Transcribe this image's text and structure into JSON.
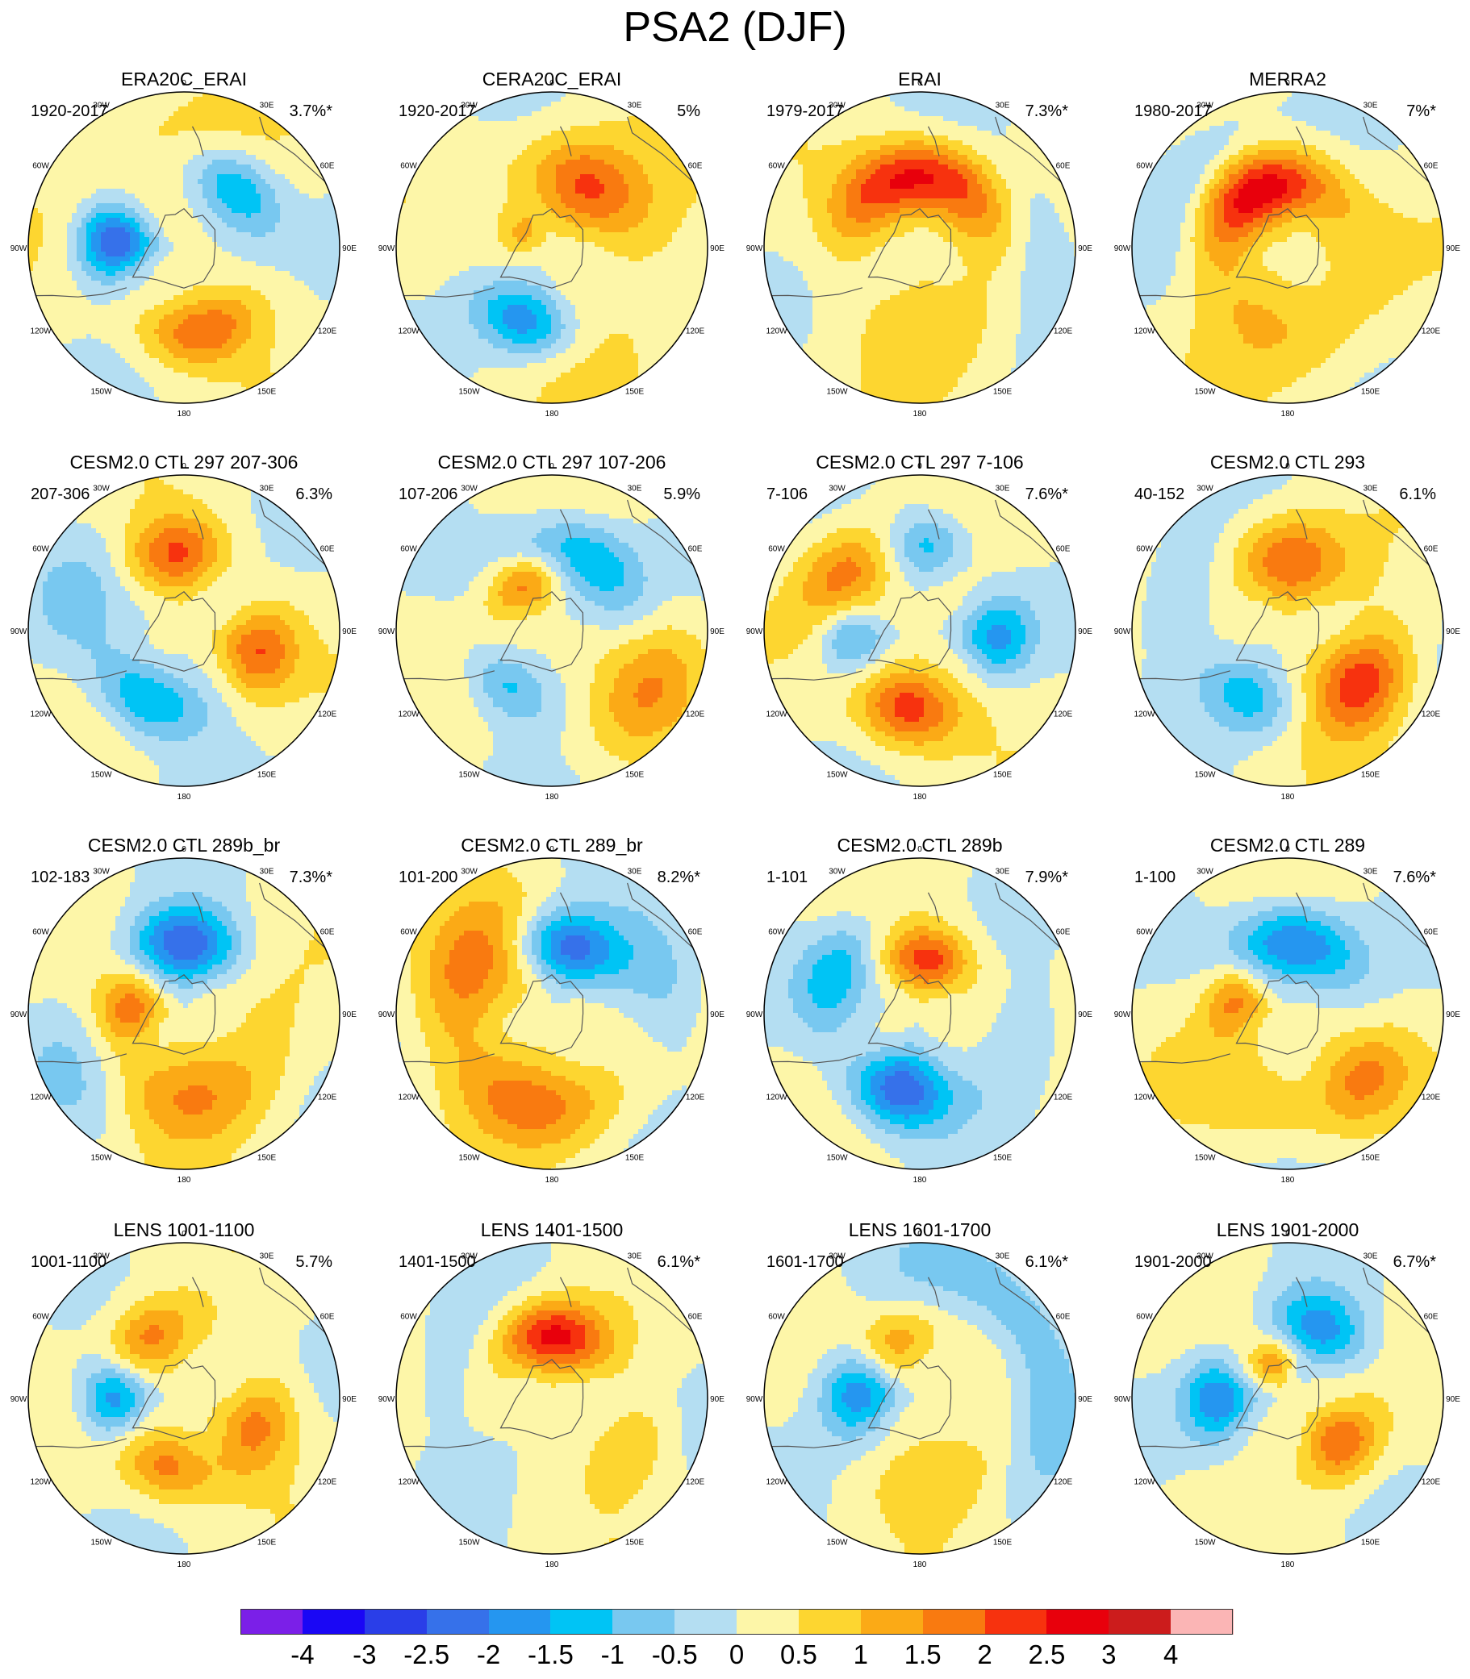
{
  "title": "PSA2 (DJF)",
  "colors": {
    "level_colors": [
      "#7b1fe8",
      "#1a07f5",
      "#2a3ee8",
      "#3671ea",
      "#2596f0",
      "#00c4f5",
      "#78c8f0",
      "#b4def2",
      "#fdf6a8",
      "#fdd630",
      "#fbaa16",
      "#f97a10",
      "#f7320e",
      "#e8000c",
      "#cc1c1c",
      "#fbb5b5"
    ],
    "coast": "#555555"
  },
  "colorbar": {
    "labels": [
      "-4",
      "-3",
      "-2.5",
      "-2",
      "-1.5",
      "-1",
      "-0.5",
      "0",
      "0.5",
      "1",
      "1.5",
      "2",
      "2.5",
      "3",
      "4"
    ]
  },
  "lon_labels": [
    "0",
    "30E",
    "60E",
    "90E",
    "120E",
    "150E",
    "180",
    "150W",
    "120W",
    "90W",
    "60W",
    "30W"
  ],
  "panels": [
    {
      "title": "ERA20C_ERAI",
      "period": "1920-2017",
      "variance": "3.7%*",
      "anomalies": [
        {
          "lon": 10,
          "r": 0.55,
          "amp": 1.7,
          "sa": 28,
          "sr": 0.15
        },
        {
          "lon": 265,
          "r": 0.45,
          "amp": -2.9,
          "sa": 20,
          "sr": 0.17
        },
        {
          "lon": 140,
          "r": 0.5,
          "amp": -1.8,
          "sa": 26,
          "sr": 0.16
        },
        {
          "lon": 200,
          "r": 0.7,
          "amp": 0.6,
          "sa": 40,
          "sr": 0.25
        }
      ]
    },
    {
      "title": "CERA20C_ERAI",
      "period": "1920-2017",
      "variance": "5%",
      "anomalies": [
        {
          "lon": 340,
          "r": 0.5,
          "amp": -2.0,
          "sa": 25,
          "sr": 0.16
        },
        {
          "lon": 155,
          "r": 0.45,
          "amp": 1.8,
          "sa": 35,
          "sr": 0.2
        },
        {
          "lon": 240,
          "r": 0.2,
          "amp": 0.9,
          "sa": 30,
          "sr": 0.1
        },
        {
          "lon": 60,
          "r": 0.7,
          "amp": 0.4,
          "sa": 60,
          "sr": 0.3
        }
      ]
    },
    {
      "title": "ERAI",
      "period": "1979-2017",
      "variance": "7.3%*",
      "anomalies": [
        {
          "lon": 180,
          "r": 0.45,
          "amp": 2.6,
          "sa": 55,
          "sr": 0.17
        },
        {
          "lon": 20,
          "r": 0.55,
          "amp": 0.7,
          "sa": 40,
          "sr": 0.25
        },
        {
          "lon": 100,
          "r": 0.75,
          "amp": -0.7,
          "sa": 30,
          "sr": 0.2
        }
      ]
    },
    {
      "title": "MERRA2",
      "period": "1980-2017",
      "variance": "7%*",
      "anomalies": [
        {
          "lon": 205,
          "r": 0.4,
          "amp": 2.6,
          "sa": 55,
          "sr": 0.17
        },
        {
          "lon": 10,
          "r": 0.55,
          "amp": 0.8,
          "sa": 50,
          "sr": 0.25
        },
        {
          "lon": 230,
          "r": 0.8,
          "amp": -0.8,
          "sa": 30,
          "sr": 0.15
        }
      ]
    },
    {
      "title": "CESM2.0 CTL 297 207-306",
      "period": "207-306",
      "variance": "6.3%",
      "anomalies": [
        {
          "lon": 330,
          "r": 0.5,
          "amp": -1.7,
          "sa": 30,
          "sr": 0.16
        },
        {
          "lon": 75,
          "r": 0.5,
          "amp": 1.7,
          "sa": 22,
          "sr": 0.17
        },
        {
          "lon": 185,
          "r": 0.5,
          "amp": 1.8,
          "sa": 25,
          "sr": 0.17
        },
        {
          "lon": 250,
          "r": 0.7,
          "amp": -0.7,
          "sa": 25,
          "sr": 0.2
        }
      ]
    },
    {
      "title": "CESM2.0 CTL 297 107-206",
      "period": "107-206",
      "variance": "5.9%",
      "anomalies": [
        {
          "lon": 210,
          "r": 0.35,
          "amp": 1.8,
          "sa": 30,
          "sr": 0.13
        },
        {
          "lon": 160,
          "r": 0.5,
          "amp": -1.8,
          "sa": 35,
          "sr": 0.17
        },
        {
          "lon": 60,
          "r": 0.72,
          "amp": 1.2,
          "sa": 25,
          "sr": 0.2
        },
        {
          "lon": 320,
          "r": 0.45,
          "amp": -1.2,
          "sa": 25,
          "sr": 0.14
        }
      ]
    },
    {
      "title": "CESM2.0 CTL 297 7-106",
      "period": "7-106",
      "variance": "7.6%*",
      "anomalies": [
        {
          "lon": 350,
          "r": 0.5,
          "amp": 2.2,
          "sa": 25,
          "sr": 0.18
        },
        {
          "lon": 275,
          "r": 0.45,
          "amp": -1.6,
          "sa": 20,
          "sr": 0.16
        },
        {
          "lon": 235,
          "r": 0.6,
          "amp": 1.8,
          "sa": 25,
          "sr": 0.18
        },
        {
          "lon": 175,
          "r": 0.55,
          "amp": -1.4,
          "sa": 18,
          "sr": 0.15
        },
        {
          "lon": 85,
          "r": 0.5,
          "amp": -1.7,
          "sa": 20,
          "sr": 0.16
        }
      ]
    },
    {
      "title": "CESM2.0 CTL 293",
      "period": "40-152",
      "variance": "6.1%",
      "anomalies": [
        {
          "lon": 55,
          "r": 0.58,
          "amp": 2.3,
          "sa": 25,
          "sr": 0.2
        },
        {
          "lon": 180,
          "r": 0.45,
          "amp": 1.9,
          "sa": 30,
          "sr": 0.2
        },
        {
          "lon": 330,
          "r": 0.5,
          "amp": -1.3,
          "sa": 25,
          "sr": 0.16
        },
        {
          "lon": 250,
          "r": 0.75,
          "amp": -0.8,
          "sa": 25,
          "sr": 0.2
        }
      ]
    },
    {
      "title": "CESM2.0 CTL 289b_br",
      "period": "102-183",
      "variance": "7.3%*",
      "anomalies": [
        {
          "lon": 180,
          "r": 0.45,
          "amp": -2.5,
          "sa": 30,
          "sr": 0.17
        },
        {
          "lon": 15,
          "r": 0.55,
          "amp": 1.3,
          "sa": 50,
          "sr": 0.22
        },
        {
          "lon": 265,
          "r": 0.35,
          "amp": 1.6,
          "sa": 25,
          "sr": 0.14
        },
        {
          "lon": 300,
          "r": 0.8,
          "amp": -0.7,
          "sa": 25,
          "sr": 0.18
        }
      ]
    },
    {
      "title": "CESM2.0 CTL 289_br",
      "period": "101-200",
      "variance": "8.2%*",
      "anomalies": [
        {
          "lon": 165,
          "r": 0.45,
          "amp": -2.3,
          "sa": 30,
          "sr": 0.16
        },
        {
          "lon": 350,
          "r": 0.6,
          "amp": 1.5,
          "sa": 40,
          "sr": 0.2
        },
        {
          "lon": 240,
          "r": 0.6,
          "amp": 1.6,
          "sa": 35,
          "sr": 0.22
        },
        {
          "lon": 110,
          "r": 0.75,
          "amp": -1.0,
          "sa": 25,
          "sr": 0.2
        }
      ]
    },
    {
      "title": "CESM2.0 CTL 289b",
      "period": "1-101",
      "variance": "7.9%*",
      "anomalies": [
        {
          "lon": 345,
          "r": 0.5,
          "amp": -2.6,
          "sa": 25,
          "sr": 0.18
        },
        {
          "lon": 170,
          "r": 0.35,
          "amp": 2.1,
          "sa": 30,
          "sr": 0.15
        },
        {
          "lon": 245,
          "r": 0.6,
          "amp": -1.4,
          "sa": 25,
          "sr": 0.16
        },
        {
          "lon": 70,
          "r": 0.7,
          "amp": -0.8,
          "sa": 25,
          "sr": 0.18
        }
      ]
    },
    {
      "title": "CESM2.0 CTL 289",
      "period": "1-100",
      "variance": "7.6%*",
      "anomalies": [
        {
          "lon": 175,
          "r": 0.45,
          "amp": -2.3,
          "sa": 35,
          "sr": 0.17
        },
        {
          "lon": 50,
          "r": 0.65,
          "amp": 1.2,
          "sa": 20,
          "sr": 0.18
        },
        {
          "lon": 255,
          "r": 0.35,
          "amp": 1.6,
          "sa": 25,
          "sr": 0.14
        },
        {
          "lon": 340,
          "r": 0.6,
          "amp": 0.8,
          "sa": 40,
          "sr": 0.2
        }
      ]
    },
    {
      "title": "LENS 1001-1100",
      "period": "1001-1100",
      "variance": "5.7%",
      "anomalies": [
        {
          "lon": 345,
          "r": 0.45,
          "amp": 1.6,
          "sa": 25,
          "sr": 0.16
        },
        {
          "lon": 270,
          "r": 0.45,
          "amp": -2.0,
          "sa": 20,
          "sr": 0.15
        },
        {
          "lon": 70,
          "r": 0.5,
          "amp": 1.5,
          "sa": 25,
          "sr": 0.17
        },
        {
          "lon": 210,
          "r": 0.45,
          "amp": 1.6,
          "sa": 25,
          "sr": 0.16
        }
      ]
    },
    {
      "title": "LENS 1401-1500",
      "period": "1401-1500",
      "variance": "6.1%*",
      "anomalies": [
        {
          "lon": 180,
          "r": 0.4,
          "amp": 2.6,
          "sa": 35,
          "sr": 0.16
        },
        {
          "lon": 60,
          "r": 0.6,
          "amp": 0.9,
          "sa": 20,
          "sr": 0.15
        },
        {
          "lon": 250,
          "r": 0.7,
          "amp": -0.6,
          "sa": 30,
          "sr": 0.2
        }
      ]
    },
    {
      "title": "LENS 1601-1700",
      "period": "1601-1700",
      "variance": "6.1%*",
      "anomalies": [
        {
          "lon": 265,
          "r": 0.4,
          "amp": -2.0,
          "sa": 25,
          "sr": 0.17
        },
        {
          "lon": 120,
          "r": 0.85,
          "amp": -1.2,
          "sa": 45,
          "sr": 0.17
        },
        {
          "lon": 200,
          "r": 0.4,
          "amp": 1.2,
          "sa": 25,
          "sr": 0.14
        },
        {
          "lon": 20,
          "r": 0.55,
          "amp": 0.7,
          "sa": 40,
          "sr": 0.2
        }
      ]
    },
    {
      "title": "LENS 1901-2000",
      "period": "1901-2000",
      "variance": "6.7%*",
      "anomalies": [
        {
          "lon": 270,
          "r": 0.45,
          "amp": -2.0,
          "sa": 22,
          "sr": 0.16
        },
        {
          "lon": 50,
          "r": 0.45,
          "amp": 2.0,
          "sa": 22,
          "sr": 0.16
        },
        {
          "lon": 155,
          "r": 0.5,
          "amp": -1.8,
          "sa": 25,
          "sr": 0.17
        },
        {
          "lon": 200,
          "r": 0.25,
          "amp": 1.2,
          "sa": 25,
          "sr": 0.1
        }
      ]
    }
  ]
}
